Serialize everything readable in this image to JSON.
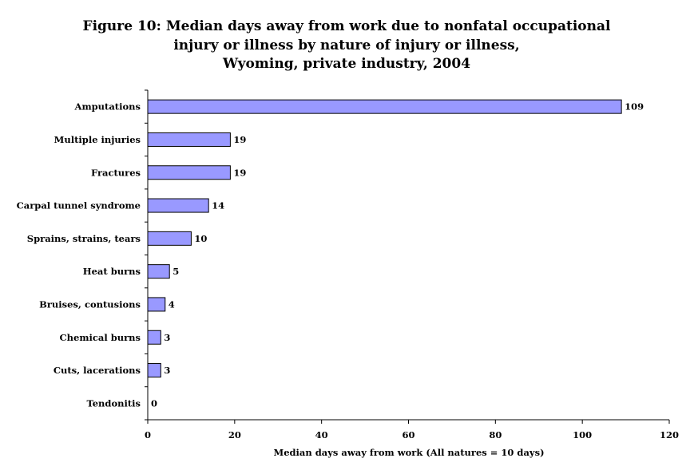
{
  "chart_data": {
    "type": "bar",
    "orientation": "horizontal",
    "title": [
      "Figure 10:  Median days away from work due to nonfatal occupational",
      "injury or illness by nature of injury or illness,",
      "Wyoming, private industry, 2004"
    ],
    "categories": [
      "Amputations",
      "Multiple injuries",
      "Fractures",
      "Carpal tunnel syndrome",
      "Sprains, strains, tears",
      "Heat burns",
      "Bruises, contusions",
      "Chemical burns",
      "Cuts, lacerations",
      "Tendonitis"
    ],
    "values": [
      109,
      19,
      19,
      14,
      10,
      5,
      4,
      3,
      3,
      0
    ],
    "xlabel": "Median days away from work (All natures = 10 days)",
    "ylabel": "",
    "xlim": [
      0,
      120
    ],
    "xticks": [
      0,
      20,
      40,
      60,
      80,
      100,
      120
    ],
    "grid": false,
    "legend": "none",
    "bar_color": "#9999ff"
  }
}
